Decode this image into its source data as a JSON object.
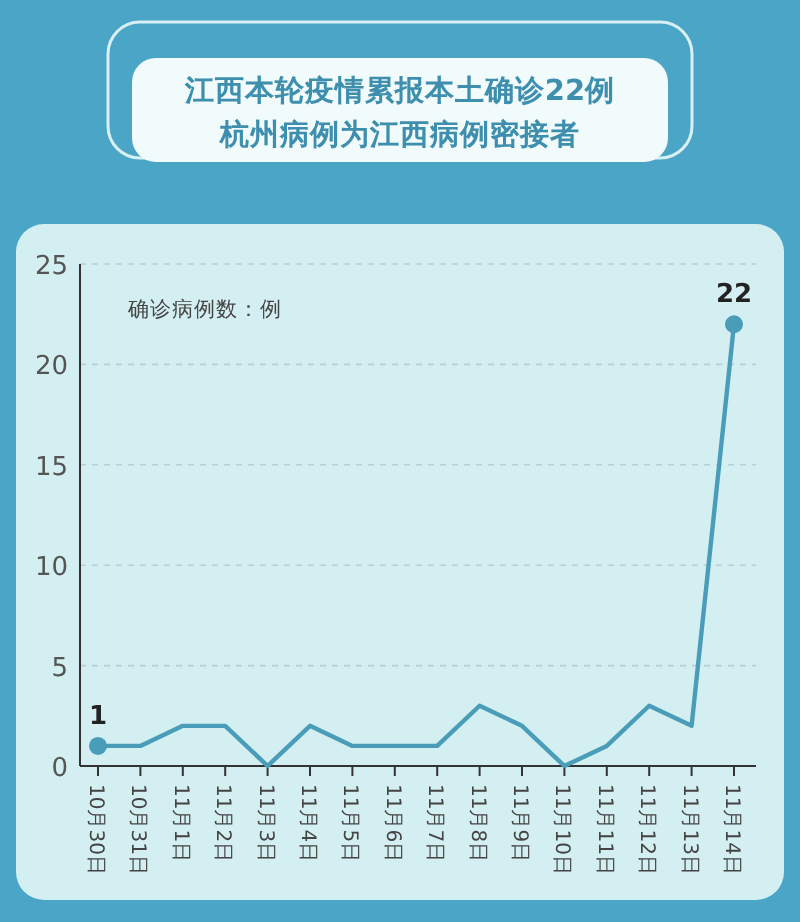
{
  "chart_data": {
    "type": "line",
    "title": "江西本轮疫情累报本土确诊22例",
    "subtitle": "杭州病例为江西病例密接者",
    "ylabel": "确诊病例数：例",
    "categories": [
      "10月30日",
      "10月31日",
      "11月1日",
      "11月2日",
      "11月3日",
      "11月4日",
      "11月5日",
      "11月6日",
      "11月7日",
      "11月8日",
      "11月9日",
      "11月10日",
      "11月11日",
      "11月12日",
      "11月13日",
      "11月14日"
    ],
    "series": [
      {
        "color": "#4a9db8",
        "values": [
          1,
          1,
          2,
          2,
          0,
          2,
          1,
          1,
          1,
          3,
          2,
          0,
          1,
          3,
          2,
          22
        ],
        "value_labels": [
          "1",
          null,
          null,
          null,
          null,
          null,
          null,
          null,
          null,
          null,
          null,
          null,
          null,
          null,
          null,
          "22"
        ]
      }
    ],
    "ylim": [
      0,
      25
    ],
    "yticks": [
      0,
      5,
      10,
      15,
      20,
      25
    ],
    "grid": "y"
  }
}
